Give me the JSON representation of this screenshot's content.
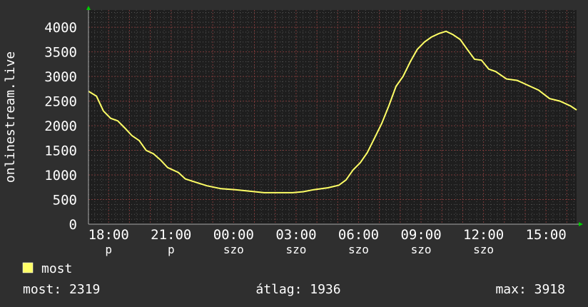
{
  "chart_data": {
    "type": "line",
    "ylabel": "onlinestream.live",
    "ylim": [
      0,
      4350
    ],
    "xlim": [
      "17:02",
      "16:28"
    ],
    "yticks": [
      0,
      500,
      1000,
      1500,
      2000,
      2500,
      3000,
      3500,
      4000
    ],
    "yticklabels": [
      "0",
      "500",
      "1000",
      "1500",
      "2000",
      "2500",
      "3000",
      "3500",
      "4000"
    ],
    "xticks": [
      {
        "day": "p",
        "time": "18:00"
      },
      {
        "day": "p",
        "time": "21:00"
      },
      {
        "day": "szo",
        "time": "00:00"
      },
      {
        "day": "szo",
        "time": "03:00"
      },
      {
        "day": "szo",
        "time": "06:00"
      },
      {
        "day": "szo",
        "time": "09:00"
      },
      {
        "day": "szo",
        "time": "12:00"
      },
      {
        "day": "",
        "time": "15:00"
      }
    ],
    "grid": true,
    "background": "#1e1e1e",
    "series": [
      {
        "name": "most",
        "color": "#ffff66",
        "points": [
          [
            "17:02",
            2700
          ],
          [
            "17:25",
            2600
          ],
          [
            "17:45",
            2300
          ],
          [
            "18:06",
            2150
          ],
          [
            "18:26",
            2100
          ],
          [
            "18:47",
            1950
          ],
          [
            "19:07",
            1800
          ],
          [
            "19:28",
            1700
          ],
          [
            "19:48",
            1500
          ],
          [
            "20:09",
            1430
          ],
          [
            "20:30",
            1300
          ],
          [
            "20:50",
            1150
          ],
          [
            "21:21",
            1050
          ],
          [
            "21:41",
            920
          ],
          [
            "22:12",
            850
          ],
          [
            "22:43",
            780
          ],
          [
            "23:24",
            720
          ],
          [
            "00:05",
            700
          ],
          [
            "00:46",
            670
          ],
          [
            "01:28",
            640
          ],
          [
            "02:09",
            640
          ],
          [
            "02:50",
            640
          ],
          [
            "03:21",
            660
          ],
          [
            "03:51",
            700
          ],
          [
            "04:32",
            740
          ],
          [
            "05:03",
            790
          ],
          [
            "05:24",
            900
          ],
          [
            "05:44",
            1100
          ],
          [
            "06:05",
            1250
          ],
          [
            "06:25",
            1450
          ],
          [
            "06:46",
            1750
          ],
          [
            "07:07",
            2050
          ],
          [
            "07:27",
            2400
          ],
          [
            "07:48",
            2800
          ],
          [
            "08:08",
            3000
          ],
          [
            "08:29",
            3300
          ],
          [
            "08:49",
            3550
          ],
          [
            "09:10",
            3700
          ],
          [
            "09:30",
            3800
          ],
          [
            "09:51",
            3870
          ],
          [
            "10:12",
            3918
          ],
          [
            "10:32",
            3850
          ],
          [
            "10:53",
            3750
          ],
          [
            "11:13",
            3550
          ],
          [
            "11:34",
            3350
          ],
          [
            "11:54",
            3330
          ],
          [
            "12:15",
            3150
          ],
          [
            "12:35",
            3100
          ],
          [
            "13:06",
            2950
          ],
          [
            "13:37",
            2920
          ],
          [
            "14:08",
            2820
          ],
          [
            "14:39",
            2720
          ],
          [
            "15:10",
            2550
          ],
          [
            "15:40",
            2500
          ],
          [
            "16:11",
            2400
          ],
          [
            "16:28",
            2319
          ]
        ]
      }
    ],
    "legend": {
      "placement": "bottom-left",
      "label": "most",
      "color": "#ffff66"
    },
    "stats": {
      "current": "most: 2319",
      "average": "átlag: 1936",
      "max": "max: 3918"
    }
  }
}
